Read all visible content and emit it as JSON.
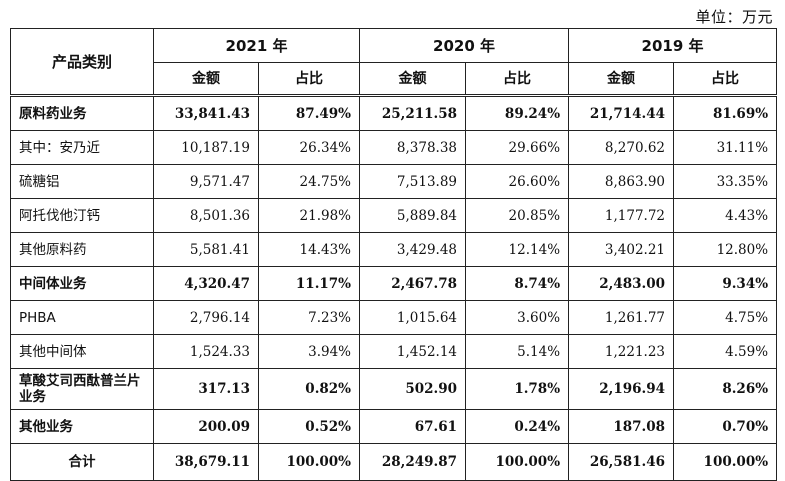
{
  "unit_label": "单位：万元",
  "header": {
    "category": "产品类别",
    "years": [
      "2021 年",
      "2020 年",
      "2019 年"
    ],
    "amount": "金额",
    "ratio": "占比"
  },
  "rows": [
    {
      "name": "原料药业务",
      "v": [
        "33,841.43",
        "87.49%",
        "25,211.58",
        "89.24%",
        "21,714.44",
        "81.69%"
      ]
    },
    {
      "name": "其中：安乃近",
      "v": [
        "10,187.19",
        "26.34%",
        "8,378.38",
        "29.66%",
        "8,270.62",
        "31.11%"
      ]
    },
    {
      "name": "硫糖铝",
      "v": [
        "9,571.47",
        "24.75%",
        "7,513.89",
        "26.60%",
        "8,863.90",
        "33.35%"
      ]
    },
    {
      "name": "阿托伐他汀钙",
      "v": [
        "8,501.36",
        "21.98%",
        "5,889.84",
        "20.85%",
        "1,177.72",
        "4.43%"
      ]
    },
    {
      "name": "其他原料药",
      "v": [
        "5,581.41",
        "14.43%",
        "3,429.48",
        "12.14%",
        "3,402.21",
        "12.80%"
      ]
    },
    {
      "name": "中间体业务",
      "v": [
        "4,320.47",
        "11.17%",
        "2,467.78",
        "8.74%",
        "2,483.00",
        "9.34%"
      ]
    },
    {
      "name": "PHBA",
      "v": [
        "2,796.14",
        "7.23%",
        "1,015.64",
        "3.60%",
        "1,261.77",
        "4.75%"
      ]
    },
    {
      "name": "其他中间体",
      "v": [
        "1,524.33",
        "3.94%",
        "1,452.14",
        "5.14%",
        "1,221.23",
        "4.59%"
      ]
    },
    {
      "name": "草酸艾司西酞普兰片业务",
      "v": [
        "317.13",
        "0.82%",
        "502.90",
        "1.78%",
        "2,196.94",
        "8.26%"
      ]
    },
    {
      "name": "其他业务",
      "v": [
        "200.09",
        "0.52%",
        "67.61",
        "0.24%",
        "187.08",
        "0.70%"
      ]
    },
    {
      "name": "合计",
      "v": [
        "38,679.11",
        "100.00%",
        "28,249.87",
        "100.00%",
        "26,581.46",
        "100.00%"
      ]
    }
  ]
}
